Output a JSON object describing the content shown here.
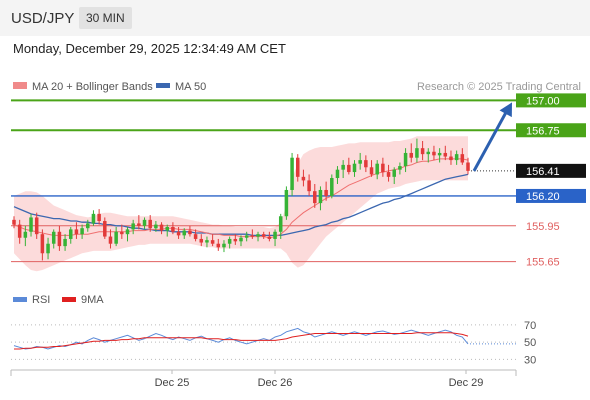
{
  "header": {
    "pair": "USD/JPY",
    "timeframe": "30 MIN"
  },
  "timestamp": "Monday, December 29, 2025 12:34:49 AM CET",
  "source": "Research © 2025 Trading Central",
  "colors": {
    "up": "#36b336",
    "down": "#e23a3a",
    "ma50": "#3b67b0",
    "bollinger": "#fcd5d5",
    "resistance": "#4aa418",
    "support": "#e06060",
    "pivot": "#2a63c8",
    "arrow": "#2c60b0"
  },
  "chart_data": [
    {
      "type": "candlestick",
      "legend": [
        {
          "label": "MA 20 + Bollinger Bands",
          "color": "#f08a8a"
        },
        {
          "label": "MA 50",
          "color": "#3b67b0"
        }
      ],
      "ylim": [
        155.58,
        157.02
      ],
      "current_price": "156.41",
      "levels": [
        {
          "label": "157.00",
          "value": 157.0,
          "kind": "resistance"
        },
        {
          "label": "156.75",
          "value": 156.75,
          "kind": "resistance"
        },
        {
          "label": "156.20",
          "value": 156.2,
          "kind": "pivot"
        },
        {
          "label": "155.95",
          "value": 155.95,
          "kind": "support"
        },
        {
          "label": "155.65",
          "value": 155.65,
          "kind": "support"
        }
      ],
      "forecast": {
        "from": 156.41,
        "to": 157.0
      },
      "x_ticks": [
        "Dec 25",
        "Dec 26",
        "Dec 29"
      ],
      "candles": [
        [
          156.0,
          156.03,
          155.93,
          155.96
        ],
        [
          155.96,
          156.0,
          155.8,
          155.85
        ],
        [
          155.85,
          155.95,
          155.78,
          155.9
        ],
        [
          155.9,
          156.05,
          155.86,
          156.02
        ],
        [
          156.02,
          156.06,
          155.84,
          155.88
        ],
        [
          155.88,
          155.92,
          155.66,
          155.72
        ],
        [
          155.72,
          155.85,
          155.67,
          155.8
        ],
        [
          155.8,
          155.92,
          155.76,
          155.9
        ],
        [
          155.9,
          155.95,
          155.74,
          155.78
        ],
        [
          155.78,
          155.88,
          155.74,
          155.84
        ],
        [
          155.84,
          155.94,
          155.8,
          155.92
        ],
        [
          155.92,
          155.98,
          155.84,
          155.88
        ],
        [
          155.88,
          155.96,
          155.84,
          155.93
        ],
        [
          155.93,
          156.0,
          155.9,
          155.97
        ],
        [
          155.97,
          156.08,
          155.95,
          156.05
        ],
        [
          156.05,
          156.09,
          155.96,
          155.99
        ],
        [
          155.99,
          156.02,
          155.84,
          155.86
        ],
        [
          155.86,
          155.92,
          155.76,
          155.8
        ],
        [
          155.8,
          155.94,
          155.78,
          155.9
        ],
        [
          155.9,
          155.96,
          155.84,
          155.88
        ],
        [
          155.88,
          155.94,
          155.82,
          155.92
        ],
        [
          155.92,
          156.0,
          155.88,
          155.97
        ],
        [
          155.97,
          156.04,
          155.92,
          155.95
        ],
        [
          155.95,
          156.02,
          155.92,
          156.0
        ],
        [
          156.0,
          156.04,
          155.9,
          155.93
        ],
        [
          155.93,
          155.99,
          155.9,
          155.96
        ],
        [
          155.96,
          155.98,
          155.88,
          155.91
        ],
        [
          155.91,
          155.96,
          155.86,
          155.94
        ],
        [
          155.94,
          155.98,
          155.88,
          155.9
        ],
        [
          155.9,
          155.94,
          155.84,
          155.87
        ],
        [
          155.87,
          155.93,
          155.84,
          155.91
        ],
        [
          155.91,
          155.95,
          155.86,
          155.88
        ],
        [
          155.88,
          155.92,
          155.82,
          155.84
        ],
        [
          155.84,
          155.88,
          155.78,
          155.81
        ],
        [
          155.81,
          155.86,
          155.77,
          155.83
        ],
        [
          155.83,
          155.88,
          155.78,
          155.8
        ],
        [
          155.8,
          155.84,
          155.74,
          155.77
        ],
        [
          155.77,
          155.83,
          155.73,
          155.8
        ],
        [
          155.8,
          155.86,
          155.76,
          155.84
        ],
        [
          155.84,
          155.88,
          155.79,
          155.82
        ],
        [
          155.82,
          155.87,
          155.78,
          155.85
        ],
        [
          155.85,
          155.9,
          155.82,
          155.87
        ],
        [
          155.87,
          155.92,
          155.84,
          155.86
        ],
        [
          155.86,
          155.9,
          155.82,
          155.88
        ],
        [
          155.88,
          155.9,
          155.84,
          155.86
        ],
        [
          155.86,
          155.9,
          155.82,
          155.84
        ],
        [
          155.84,
          155.92,
          155.78,
          155.9
        ],
        [
          155.9,
          156.05,
          155.84,
          156.03
        ],
        [
          156.03,
          156.28,
          156.0,
          156.25
        ],
        [
          156.25,
          156.56,
          156.2,
          156.52
        ],
        [
          156.52,
          156.55,
          156.32,
          156.36
        ],
        [
          156.36,
          156.42,
          156.28,
          156.33
        ],
        [
          156.33,
          156.38,
          156.2,
          156.24
        ],
        [
          156.24,
          156.3,
          156.1,
          156.14
        ],
        [
          156.14,
          156.28,
          156.08,
          156.25
        ],
        [
          156.25,
          156.32,
          156.16,
          156.2
        ],
        [
          156.2,
          156.38,
          156.18,
          156.35
        ],
        [
          156.35,
          156.45,
          156.3,
          156.42
        ],
        [
          156.42,
          156.5,
          156.35,
          156.46
        ],
        [
          156.46,
          156.52,
          156.38,
          156.4
        ],
        [
          156.4,
          156.5,
          156.36,
          156.47
        ],
        [
          156.47,
          156.56,
          156.42,
          156.5
        ],
        [
          156.5,
          156.54,
          156.4,
          156.44
        ],
        [
          156.44,
          156.5,
          156.36,
          156.38
        ],
        [
          156.38,
          156.5,
          156.34,
          156.47
        ],
        [
          156.47,
          156.52,
          156.36,
          156.4
        ],
        [
          156.4,
          156.46,
          156.32,
          156.36
        ],
        [
          156.36,
          156.44,
          156.3,
          156.42
        ],
        [
          156.42,
          156.48,
          156.38,
          156.45
        ],
        [
          156.45,
          156.6,
          156.4,
          156.56
        ],
        [
          156.56,
          156.64,
          156.48,
          156.52
        ],
        [
          156.52,
          156.68,
          156.48,
          156.6
        ],
        [
          156.6,
          156.66,
          156.5,
          156.55
        ],
        [
          156.55,
          156.6,
          156.48,
          156.57
        ],
        [
          156.57,
          156.62,
          156.5,
          156.54
        ],
        [
          156.54,
          156.6,
          156.48,
          156.56
        ],
        [
          156.56,
          156.62,
          156.5,
          156.53
        ],
        [
          156.53,
          156.58,
          156.46,
          156.5
        ],
        [
          156.5,
          156.58,
          156.46,
          156.55
        ],
        [
          156.55,
          156.6,
          156.46,
          156.48
        ],
        [
          156.48,
          156.52,
          156.38,
          156.41
        ]
      ],
      "ma20": [
        155.96,
        155.94,
        155.92,
        155.91,
        155.9,
        155.89,
        155.88,
        155.87,
        155.87,
        155.87,
        155.87,
        155.88,
        155.88,
        155.88,
        155.89,
        155.9,
        155.9,
        155.9,
        155.9,
        155.9,
        155.9,
        155.91,
        155.91,
        155.91,
        155.92,
        155.92,
        155.92,
        155.93,
        155.93,
        155.92,
        155.92,
        155.92,
        155.91,
        155.9,
        155.89,
        155.88,
        155.88,
        155.87,
        155.87,
        155.87,
        155.86,
        155.86,
        155.86,
        155.86,
        155.86,
        155.85,
        155.86,
        155.88,
        155.92,
        155.98,
        156.02,
        156.06,
        156.09,
        156.12,
        156.15,
        156.18,
        156.2,
        156.23,
        156.26,
        156.29,
        156.31,
        156.33,
        156.35,
        156.37,
        156.39,
        156.4,
        156.41,
        156.42,
        156.43,
        156.45,
        156.46,
        156.48,
        156.49,
        156.49,
        156.5,
        156.51,
        156.51,
        156.51,
        156.51,
        156.51,
        156.5
      ],
      "bb_upper": [
        156.2,
        156.22,
        156.24,
        156.24,
        156.23,
        156.2,
        156.16,
        156.12,
        156.1,
        156.08,
        156.06,
        156.04,
        156.03,
        156.02,
        156.03,
        156.05,
        156.06,
        156.06,
        156.05,
        156.04,
        156.03,
        156.03,
        156.03,
        156.03,
        156.03,
        156.03,
        156.03,
        156.03,
        156.03,
        156.02,
        156.01,
        156.0,
        155.99,
        155.98,
        155.97,
        155.96,
        155.96,
        155.95,
        155.95,
        155.94,
        155.94,
        155.94,
        155.94,
        155.94,
        155.94,
        155.93,
        155.94,
        155.98,
        156.12,
        156.35,
        156.47,
        156.55,
        156.58,
        156.6,
        156.61,
        156.61,
        156.61,
        156.62,
        156.63,
        156.64,
        156.64,
        156.65,
        156.65,
        156.65,
        156.65,
        156.65,
        156.65,
        156.66,
        156.66,
        156.67,
        156.68,
        156.7,
        156.7,
        156.7,
        156.7,
        156.7,
        156.7,
        156.7,
        156.7,
        156.7,
        156.7
      ],
      "bb_lower": [
        155.72,
        155.67,
        155.62,
        155.58,
        155.57,
        155.58,
        155.6,
        155.62,
        155.64,
        155.66,
        155.68,
        155.7,
        155.72,
        155.73,
        155.74,
        155.74,
        155.74,
        155.74,
        155.75,
        155.76,
        155.77,
        155.78,
        155.79,
        155.79,
        155.8,
        155.8,
        155.8,
        155.8,
        155.8,
        155.8,
        155.8,
        155.8,
        155.79,
        155.78,
        155.77,
        155.77,
        155.76,
        155.76,
        155.76,
        155.76,
        155.76,
        155.76,
        155.76,
        155.76,
        155.76,
        155.76,
        155.76,
        155.76,
        155.72,
        155.64,
        155.6,
        155.62,
        155.68,
        155.74,
        155.8,
        155.86,
        155.9,
        155.94,
        155.98,
        156.02,
        156.06,
        156.1,
        156.14,
        156.18,
        156.22,
        156.24,
        156.26,
        156.27,
        156.28,
        156.3,
        156.31,
        156.32,
        156.33,
        156.33,
        156.33,
        156.33,
        156.33,
        156.33,
        156.33,
        156.33,
        156.33
      ],
      "ma50": [
        156.11,
        156.09,
        156.07,
        156.05,
        156.04,
        156.03,
        156.02,
        156.01,
        156.01,
        156.0,
        155.99,
        155.99,
        155.98,
        155.98,
        155.97,
        155.97,
        155.96,
        155.96,
        155.95,
        155.95,
        155.94,
        155.93,
        155.93,
        155.92,
        155.92,
        155.91,
        155.91,
        155.91,
        155.9,
        155.9,
        155.9,
        155.9,
        155.89,
        155.89,
        155.89,
        155.88,
        155.88,
        155.88,
        155.88,
        155.88,
        155.88,
        155.88,
        155.87,
        155.87,
        155.87,
        155.87,
        155.87,
        155.87,
        155.88,
        155.89,
        155.9,
        155.91,
        155.92,
        155.94,
        155.95,
        155.96,
        155.98,
        155.99,
        156.01,
        156.02,
        156.04,
        156.06,
        156.08,
        156.1,
        156.12,
        156.14,
        156.15,
        156.17,
        156.18,
        156.2,
        156.22,
        156.24,
        156.26,
        156.28,
        156.3,
        156.32,
        156.34,
        156.35,
        156.36,
        156.37,
        156.38
      ]
    },
    {
      "type": "line",
      "legend": [
        {
          "label": "RSI",
          "color": "#5b8ad8"
        },
        {
          "label": "9MA",
          "color": "#e02020"
        }
      ],
      "ylim": [
        20,
        85
      ],
      "y_ticks": [
        "70",
        "50",
        "30"
      ],
      "y_tick_values": [
        70,
        50,
        30
      ],
      "x_ticks": [
        "Dec 25",
        "Dec 26",
        "Dec 29"
      ],
      "series": [
        {
          "name": "RSI",
          "values": [
            46,
            44,
            42,
            43,
            45,
            44,
            42,
            44,
            46,
            45,
            47,
            50,
            48,
            52,
            55,
            53,
            50,
            52,
            54,
            56,
            58,
            55,
            52,
            54,
            57,
            60,
            58,
            55,
            53,
            56,
            54,
            52,
            55,
            57,
            54,
            52,
            50,
            53,
            55,
            52,
            50,
            48,
            50,
            52,
            54,
            52,
            56,
            58,
            62,
            64,
            66,
            62,
            60,
            56,
            58,
            60,
            62,
            60,
            58,
            60,
            62,
            60,
            58,
            60,
            62,
            63,
            61,
            59,
            60,
            62,
            64,
            62,
            60,
            58,
            60,
            62,
            64,
            62,
            58,
            56,
            48
          ]
        },
        {
          "name": "9MA",
          "values": [
            42,
            42,
            43,
            43,
            44,
            44,
            44,
            45,
            45,
            46,
            47,
            48,
            49,
            50,
            51,
            51,
            52,
            52,
            52,
            53,
            53,
            54,
            54,
            55,
            55,
            55,
            55,
            55,
            55,
            55,
            55,
            55,
            55,
            55,
            54,
            54,
            54,
            53,
            53,
            53,
            52,
            52,
            52,
            52,
            52,
            52,
            52,
            53,
            54,
            56,
            57,
            58,
            59,
            60,
            60,
            60,
            60,
            60,
            60,
            60,
            60,
            60,
            60,
            60,
            60,
            60,
            60,
            60,
            60,
            60,
            60,
            61,
            61,
            61,
            61,
            61,
            61,
            61,
            60,
            59,
            57
          ]
        }
      ]
    }
  ]
}
